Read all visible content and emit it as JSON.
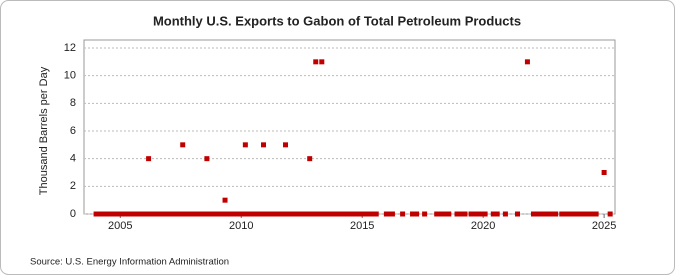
{
  "chart_data": {
    "type": "scatter",
    "title": "Monthly U.S. Exports to Gabon of Total Petroleum Products",
    "y_label": "Thousand Barrels per Day",
    "source": "Source: U.S. Energy Information Administration",
    "color": "#c00000",
    "grid": true,
    "xlim": [
      2003.5,
      2025.45
    ],
    "xticks": [
      2005,
      2010,
      2015,
      2020,
      2025
    ],
    "ylim": [
      0,
      12
    ],
    "yticks": [
      0,
      2,
      4,
      6,
      8,
      10,
      12
    ],
    "x": [
      2004,
      2004.08,
      2004.17,
      2004.25,
      2004.33,
      2004.42,
      2004.5,
      2004.58,
      2004.67,
      2004.75,
      2004.83,
      2004.92,
      2005,
      2005.08,
      2005.17,
      2005.25,
      2005.33,
      2005.42,
      2005.5,
      2005.58,
      2005.67,
      2005.75,
      2005.83,
      2005.92,
      2006,
      2006.08,
      2006.17,
      2006.25,
      2006.33,
      2006.42,
      2006.5,
      2006.58,
      2006.67,
      2006.75,
      2006.83,
      2006.92,
      2007,
      2007.08,
      2007.17,
      2007.25,
      2007.33,
      2007.42,
      2007.5,
      2007.58,
      2007.67,
      2007.75,
      2007.83,
      2007.92,
      2008,
      2008.08,
      2008.17,
      2008.25,
      2008.33,
      2008.42,
      2008.5,
      2008.58,
      2008.67,
      2008.75,
      2008.83,
      2008.92,
      2009,
      2009.08,
      2009.17,
      2009.25,
      2009.33,
      2009.42,
      2009.5,
      2009.58,
      2009.67,
      2009.75,
      2009.83,
      2009.92,
      2010,
      2010.08,
      2010.17,
      2010.25,
      2010.33,
      2010.42,
      2010.5,
      2010.58,
      2010.67,
      2010.75,
      2010.83,
      2010.92,
      2011,
      2011.08,
      2011.17,
      2011.25,
      2011.33,
      2011.42,
      2011.5,
      2011.58,
      2011.67,
      2011.75,
      2011.83,
      2011.92,
      2012,
      2012.08,
      2012.17,
      2012.25,
      2012.33,
      2012.42,
      2012.5,
      2012.58,
      2012.67,
      2012.75,
      2012.83,
      2012.92,
      2013,
      2013.08,
      2013.17,
      2013.25,
      2013.33,
      2013.42,
      2013.5,
      2013.58,
      2013.67,
      2013.75,
      2013.83,
      2013.92,
      2014,
      2014.08,
      2014.17,
      2014.25,
      2014.33,
      2014.42,
      2014.5,
      2014.58,
      2014.67,
      2014.75,
      2014.83,
      2014.92,
      2015,
      2015.08,
      2015.17,
      2015.25,
      2015.33,
      2015.42,
      2015.5,
      2015.58,
      2016,
      2016.08,
      2016.17,
      2016.25,
      2016.67,
      2017.08,
      2017.17,
      2017.25,
      2017.58,
      2018.08,
      2018.17,
      2018.25,
      2018.33,
      2018.42,
      2018.5,
      2018.58,
      2018.92,
      2019,
      2019.08,
      2019.17,
      2019.25,
      2019.5,
      2019.58,
      2019.67,
      2019.75,
      2019.92,
      2020,
      2020.08,
      2020.42,
      2020.5,
      2020.58,
      2020.92,
      2021.42,
      2021.83,
      2022.08,
      2022.17,
      2022.25,
      2022.33,
      2022.42,
      2022.5,
      2022.58,
      2022.67,
      2022.75,
      2022.83,
      2022.92,
      2023,
      2023.25,
      2023.33,
      2023.42,
      2023.5,
      2023.58,
      2023.67,
      2023.75,
      2023.83,
      2023.92,
      2024,
      2024.08,
      2024.17,
      2024.25,
      2024.33,
      2024.42,
      2024.5,
      2024.58,
      2024.67,
      2025,
      2025.25
    ],
    "values": [
      0,
      0,
      0,
      0,
      0,
      0,
      0,
      0,
      0,
      0,
      0,
      0,
      0,
      0,
      0,
      0,
      0,
      0,
      0,
      0,
      0,
      0,
      0,
      0,
      0,
      0,
      4,
      0,
      0,
      0,
      0,
      0,
      0,
      0,
      0,
      0,
      0,
      0,
      0,
      0,
      0,
      0,
      0,
      5,
      0,
      0,
      0,
      0,
      0,
      0,
      0,
      0,
      0,
      0,
      0,
      4,
      0,
      0,
      0,
      0,
      0,
      0,
      0,
      0,
      1,
      0,
      0,
      0,
      0,
      0,
      0,
      0,
      0,
      0,
      5,
      0,
      0,
      0,
      0,
      0,
      0,
      0,
      0,
      5,
      0,
      0,
      0,
      0,
      0,
      0,
      0,
      0,
      0,
      0,
      5,
      0,
      0,
      0,
      0,
      0,
      0,
      0,
      0,
      0,
      0,
      0,
      4,
      0,
      0,
      11,
      0,
      0,
      11,
      0,
      0,
      0,
      0,
      0,
      0,
      0,
      0,
      0,
      0,
      0,
      0,
      0,
      0,
      0,
      0,
      0,
      0,
      0,
      0,
      0,
      0,
      0,
      0,
      0,
      0,
      0,
      0,
      0,
      0,
      0,
      0,
      0,
      0,
      0,
      0,
      0,
      0,
      0,
      0,
      0,
      0,
      0,
      0,
      0,
      0,
      0,
      0,
      0,
      0,
      0,
      0,
      0,
      0,
      0,
      0,
      0,
      0,
      0,
      0,
      11,
      0,
      0,
      0,
      0,
      0,
      0,
      0,
      0,
      0,
      0,
      0,
      0,
      0,
      0,
      0,
      0,
      0,
      0,
      0,
      0,
      0,
      0,
      0,
      0,
      0,
      0,
      0,
      0,
      0,
      0,
      3,
      0
    ]
  }
}
